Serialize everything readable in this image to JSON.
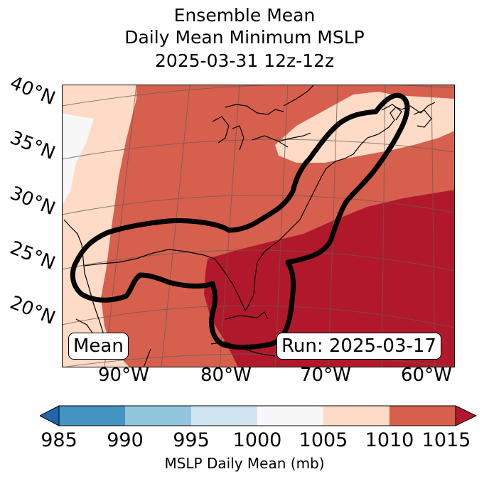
{
  "title": {
    "line1": "Ensemble Mean",
    "line2": "Daily Mean Minimum MSLP",
    "line3": "2025-03-31 12z-12z"
  },
  "map": {
    "lat_labels": [
      "40°N",
      "35°N",
      "30°N",
      "25°N",
      "20°N"
    ],
    "lon_labels": [
      "90°W",
      "80°W",
      "70°W",
      "60°W"
    ],
    "annotation_left": "Mean",
    "annotation_right": "Run: 2025-03-17",
    "colors": {
      "c1000_1005": "#f7f7f7",
      "c1005_1010": "#fddbc7",
      "c1010_1015": "#d6604d",
      "c_gt_1015": "#b2182b",
      "contour": "#000000"
    }
  },
  "colorbar": {
    "ticks": [
      "985",
      "990",
      "995",
      "1000",
      "1005",
      "1010",
      "1015"
    ],
    "colors": [
      "#4393c3",
      "#92c5de",
      "#d1e5f0",
      "#f7f7f7",
      "#fddbc7",
      "#d6604d"
    ],
    "under_color": "#2166ac",
    "over_color": "#b2182b",
    "label": "MSLP Daily Mean (mb)"
  }
}
